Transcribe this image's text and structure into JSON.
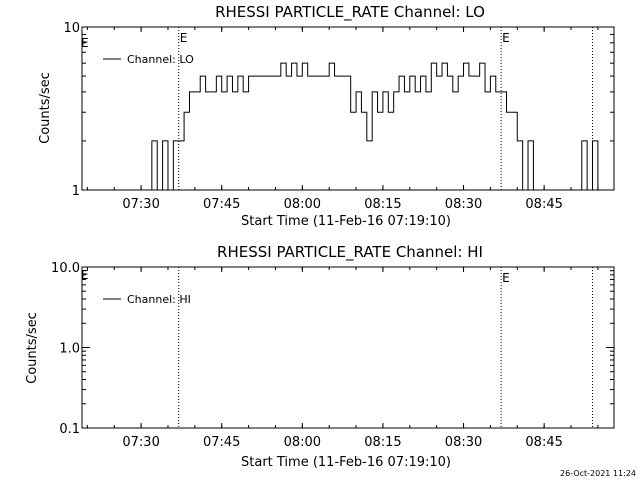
{
  "footer": {
    "timestamp": "26-Oct-2021 11:24"
  },
  "chart_data": [
    {
      "type": "line",
      "title": "RHESSI PARTICLE_RATE Channel: LO",
      "xlabel": "Start Time (11-Feb-16 07:19:10)",
      "ylabel": "Counts/sec",
      "yscale": "log",
      "ylim": [
        1,
        10
      ],
      "xlim": [
        "07:19",
        "08:58"
      ],
      "xticks": [
        "07:30",
        "07:45",
        "08:00",
        "08:15",
        "08:30",
        "08:45"
      ],
      "yticks": [
        "1",
        "10"
      ],
      "legend": {
        "entries": [
          "Channel: LO"
        ],
        "placement": "top-left"
      },
      "markers": [
        {
          "time": "07:37",
          "label": "E"
        },
        {
          "time": "08:37",
          "label": "E"
        },
        {
          "time": "08:54",
          "label": ""
        }
      ],
      "edge_label": "E",
      "series": [
        {
          "name": "Channel: LO",
          "times": [
            "07:19",
            "07:30",
            "07:31",
            "07:32",
            "07:33",
            "07:34",
            "07:35",
            "07:36",
            "07:37",
            "07:38",
            "07:39",
            "07:40",
            "07:41",
            "07:42",
            "07:43",
            "07:44",
            "07:45",
            "07:46",
            "07:47",
            "07:48",
            "07:49",
            "07:50",
            "07:51",
            "07:52",
            "07:53",
            "07:54",
            "07:55",
            "07:56",
            "07:57",
            "07:58",
            "07:59",
            "08:00",
            "08:01",
            "08:02",
            "08:03",
            "08:04",
            "08:05",
            "08:06",
            "08:07",
            "08:08",
            "08:09",
            "08:10",
            "08:11",
            "08:12",
            "08:13",
            "08:14",
            "08:15",
            "08:16",
            "08:17",
            "08:18",
            "08:19",
            "08:20",
            "08:21",
            "08:22",
            "08:23",
            "08:24",
            "08:25",
            "08:26",
            "08:27",
            "08:28",
            "08:29",
            "08:30",
            "08:31",
            "08:32",
            "08:33",
            "08:34",
            "08:35",
            "08:36",
            "08:37",
            "08:38",
            "08:39",
            "08:40",
            "08:41",
            "08:42",
            "08:43",
            "08:44",
            "08:45",
            "08:46",
            "08:47",
            "08:48",
            "08:49",
            "08:50",
            "08:51",
            "08:52",
            "08:53",
            "08:54",
            "08:55",
            "08:56",
            "08:57",
            "08:58"
          ],
          "values": [
            0,
            0,
            1,
            2,
            1,
            2,
            1,
            2,
            2,
            3,
            4,
            4,
            5,
            4,
            4,
            5,
            4,
            5,
            4,
            5,
            4,
            5,
            5,
            5,
            5,
            5,
            5,
            6,
            5,
            6,
            5,
            6,
            5,
            5,
            5,
            5,
            6,
            5,
            5,
            5,
            3,
            4,
            3,
            2,
            4,
            3,
            4,
            3,
            4,
            5,
            4,
            5,
            4,
            5,
            4,
            6,
            5,
            6,
            5,
            4,
            5,
            6,
            5,
            5,
            6,
            4,
            5,
            4,
            4,
            3,
            3,
            2,
            1,
            2,
            1,
            0,
            0,
            0,
            0,
            0,
            0,
            0,
            0,
            2,
            1,
            2,
            0,
            0,
            0,
            0
          ]
        }
      ]
    },
    {
      "type": "line",
      "title": "RHESSI PARTICLE_RATE Channel: HI",
      "xlabel": "Start Time (11-Feb-16 07:19:10)",
      "ylabel": "Counts/sec",
      "yscale": "log",
      "ylim": [
        0.1,
        10
      ],
      "xlim": [
        "07:19",
        "08:58"
      ],
      "xticks": [
        "07:30",
        "07:45",
        "08:00",
        "08:15",
        "08:30",
        "08:45"
      ],
      "yticks": [
        "10.0",
        "1.0",
        "0.1"
      ],
      "legend": {
        "entries": [
          "Channel: HI"
        ],
        "placement": "top-left"
      },
      "markers": [
        {
          "time": "07:37",
          "label": ""
        },
        {
          "time": "08:37",
          "label": "E"
        },
        {
          "time": "08:54",
          "label": ""
        }
      ],
      "edge_label": "E",
      "series": [
        {
          "name": "Channel: HI",
          "times": [],
          "values": []
        }
      ]
    }
  ]
}
